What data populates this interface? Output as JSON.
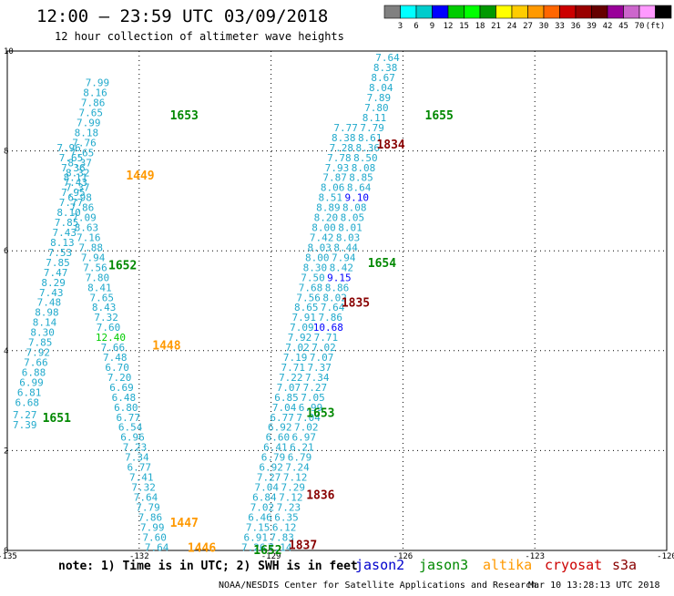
{
  "title": "12:00 – 23:59 UTC 03/09/2018",
  "subtitle": "12 hour collection of altimeter wave heights",
  "colorbar": {
    "colors": [
      "#808080",
      "#00ffff",
      "#00cccc",
      "#0000ff",
      "#00cc00",
      "#00ff00",
      "#009900",
      "#ffff00",
      "#ffcc00",
      "#ff9900",
      "#ff6600",
      "#cc0000",
      "#990000",
      "#660000",
      "#990099",
      "#cc66cc",
      "#ff99ff",
      "#000000"
    ],
    "labels": [
      "3",
      "6",
      "9",
      "12",
      "15",
      "18",
      "21",
      "24",
      "27",
      "30",
      "33",
      "36",
      "39",
      "42",
      "45",
      "70",
      "(ft)"
    ]
  },
  "axes": {
    "x_ticks": [
      "-135",
      "-132",
      "-129",
      "-126",
      "-123",
      "-120"
    ],
    "y_ticks": [
      "0",
      "2",
      "4",
      "6",
      "8",
      "10"
    ],
    "x_range": [
      -135,
      -120
    ],
    "y_range": [
      0,
      10
    ]
  },
  "legend": {
    "note": "note:  1) Time is in UTC;  2) SWH is in feet",
    "satellites": [
      {
        "name": "jason2",
        "color": "#0000cc"
      },
      {
        "name": "jason3",
        "color": "#008800"
      },
      {
        "name": "altika",
        "color": "#ff9900"
      },
      {
        "name": "cryosat",
        "color": "#cc0000"
      },
      {
        "name": "s3a",
        "color": "#880000"
      }
    ]
  },
  "footer": {
    "credit": "NOAA/NESDIS Center for Satellite Applications and Research",
    "timestamp": "Mar 10 13:28:13 UTC 2018"
  },
  "passes": [
    {
      "time": "1651",
      "lon": -134.2,
      "lat": 2.65,
      "color": "#008800"
    },
    {
      "time": "1652",
      "lon": -132.7,
      "lat": 5.7,
      "color": "#008800"
    },
    {
      "time": "1653",
      "lon": -131.3,
      "lat": 8.7,
      "color": "#008800"
    },
    {
      "time": "1446",
      "lon": -130.9,
      "lat": 0.05,
      "color": "#ff9900"
    },
    {
      "time": "1447",
      "lon": -131.3,
      "lat": 0.55,
      "color": "#ff9900"
    },
    {
      "time": "1448",
      "lon": -131.7,
      "lat": 4.1,
      "color": "#ff9900"
    },
    {
      "time": "1449",
      "lon": -132.3,
      "lat": 7.5,
      "color": "#ff9900"
    },
    {
      "time": "1652",
      "lon": -129.4,
      "lat": 0.0,
      "color": "#008800"
    },
    {
      "time": "1653",
      "lon": -128.2,
      "lat": 2.75,
      "color": "#008800"
    },
    {
      "time": "1654",
      "lon": -126.8,
      "lat": 5.75,
      "color": "#008800"
    },
    {
      "time": "1655",
      "lon": -125.5,
      "lat": 8.7,
      "color": "#008800"
    },
    {
      "time": "1837",
      "lon": -128.6,
      "lat": 0.1,
      "color": "#880000"
    },
    {
      "time": "1836",
      "lon": -128.2,
      "lat": 1.1,
      "color": "#880000"
    },
    {
      "time": "1835",
      "lon": -127.4,
      "lat": 4.95,
      "color": "#880000"
    },
    {
      "time": "1834",
      "lon": -126.6,
      "lat": 8.12,
      "color": "#880000"
    }
  ],
  "tracks": [
    {
      "name": "jason3-1651-1653",
      "color": "#22aacc",
      "points": [
        [
          -134.6,
          2.5,
          "7.39"
        ],
        [
          -134.6,
          2.7,
          "7.27"
        ],
        [
          -134.55,
          2.95,
          "6.68"
        ],
        [
          -134.5,
          3.15,
          "6.81"
        ],
        [
          -134.45,
          3.35,
          "6.99"
        ],
        [
          -134.4,
          3.55,
          "6.88"
        ],
        [
          -134.35,
          3.75,
          "7.66"
        ],
        [
          -134.3,
          3.95,
          "7.92"
        ],
        [
          -134.25,
          4.15,
          "7.85"
        ],
        [
          -134.2,
          4.35,
          "8.30"
        ],
        [
          -134.15,
          4.55,
          "8.14"
        ],
        [
          -134.1,
          4.75,
          "8.98"
        ],
        [
          -134.05,
          4.95,
          "7.48"
        ],
        [
          -134.0,
          5.15,
          "7.43"
        ],
        [
          -133.95,
          5.35,
          "8.29"
        ],
        [
          -133.9,
          5.55,
          "7.47"
        ],
        [
          -133.85,
          5.75,
          "7.85"
        ],
        [
          -133.8,
          5.95,
          "7.53"
        ],
        [
          -133.75,
          6.15,
          "8.13"
        ],
        [
          -133.7,
          6.35,
          "7.43"
        ],
        [
          -133.65,
          6.55,
          "7.85"
        ],
        [
          -133.6,
          6.75,
          "8.10"
        ],
        [
          -133.55,
          6.95,
          "7.77"
        ],
        [
          -133.5,
          7.15,
          "7.95"
        ],
        [
          -133.45,
          7.35,
          "7.43"
        ],
        [
          -133.4,
          7.55,
          "8.32"
        ],
        [
          -133.35,
          7.75,
          "8.37"
        ],
        [
          -133.3,
          7.95,
          "7.65"
        ],
        [
          -133.25,
          8.15,
          "7.76"
        ],
        [
          -133.2,
          8.35,
          "8.18"
        ],
        [
          -133.15,
          8.55,
          "7.99"
        ],
        [
          -133.1,
          8.75,
          "7.65"
        ],
        [
          -133.05,
          8.95,
          "7.86"
        ],
        [
          -133.0,
          9.15,
          "8.16"
        ],
        [
          -132.95,
          9.35,
          "7.99"
        ]
      ]
    },
    {
      "name": "altika-1446-1449",
      "color": "#22aacc",
      "points": [
        [
          -131.6,
          0.05,
          "7.64"
        ],
        [
          -131.65,
          0.25,
          "7.60"
        ],
        [
          -131.7,
          0.45,
          "7.99"
        ],
        [
          -131.75,
          0.65,
          "7.86"
        ],
        [
          -131.8,
          0.85,
          "7.79"
        ],
        [
          -131.85,
          1.05,
          "7.64"
        ],
        [
          -131.9,
          1.25,
          "7.32"
        ],
        [
          -131.95,
          1.45,
          "7.41"
        ],
        [
          -132.0,
          1.65,
          "6.77"
        ],
        [
          -132.05,
          1.85,
          "7.34"
        ],
        [
          -132.1,
          2.05,
          "7.23"
        ],
        [
          -132.15,
          2.25,
          "6.96"
        ],
        [
          -132.2,
          2.45,
          "6.54"
        ],
        [
          -132.25,
          2.65,
          "6.77"
        ],
        [
          -132.3,
          2.85,
          "6.80"
        ],
        [
          -132.35,
          3.05,
          "6.48"
        ],
        [
          -132.4,
          3.25,
          "6.69"
        ],
        [
          -132.45,
          3.45,
          "7.20"
        ],
        [
          -132.5,
          3.65,
          "6.70"
        ],
        [
          -132.55,
          3.85,
          "7.48"
        ],
        [
          -132.6,
          4.05,
          "7.66"
        ],
        [
          -132.65,
          4.25,
          "12.40"
        ],
        [
          -132.7,
          4.45,
          "7.60"
        ],
        [
          -132.75,
          4.65,
          "7.32"
        ],
        [
          -132.8,
          4.85,
          "8.43"
        ],
        [
          -132.85,
          5.05,
          "7.65"
        ],
        [
          -132.9,
          5.25,
          "8.41"
        ],
        [
          -132.95,
          5.45,
          "7.80"
        ],
        [
          -133.0,
          5.65,
          "7.56"
        ],
        [
          -133.05,
          5.85,
          "7.94"
        ],
        [
          -133.1,
          6.05,
          "7.88"
        ],
        [
          -133.15,
          6.25,
          "7.16"
        ],
        [
          -133.2,
          6.45,
          "8.63"
        ],
        [
          -133.25,
          6.65,
          "7.09"
        ],
        [
          -133.3,
          6.85,
          "7.86"
        ],
        [
          -133.35,
          7.05,
          "6.98"
        ],
        [
          -133.4,
          7.25,
          "7.37"
        ],
        [
          -133.45,
          7.45,
          "8.11"
        ],
        [
          -133.5,
          7.65,
          "7.36"
        ],
        [
          -133.55,
          7.85,
          "7.65"
        ],
        [
          -133.6,
          8.05,
          "7.96"
        ]
      ]
    },
    {
      "name": "jason3-1652-1655",
      "color": "#22aacc",
      "points": [
        [
          -129.4,
          0.05,
          "7.26"
        ],
        [
          -129.35,
          0.25,
          "6.91"
        ],
        [
          -129.3,
          0.45,
          "7.15"
        ],
        [
          -129.25,
          0.65,
          "6.46"
        ],
        [
          -129.2,
          0.85,
          "7.02"
        ],
        [
          -129.15,
          1.05,
          "6.84"
        ],
        [
          -129.1,
          1.25,
          "7.04"
        ],
        [
          -129.05,
          1.45,
          "7.27"
        ],
        [
          -129.0,
          1.65,
          "6.92"
        ],
        [
          -128.95,
          1.85,
          "6.79"
        ],
        [
          -128.9,
          2.05,
          "6.41"
        ],
        [
          -128.85,
          2.25,
          "6.60"
        ],
        [
          -128.8,
          2.45,
          "6.92"
        ],
        [
          -128.75,
          2.65,
          "6.77"
        ],
        [
          -128.7,
          2.85,
          "7.04"
        ],
        [
          -128.65,
          3.05,
          "6.85"
        ],
        [
          -128.6,
          3.25,
          "7.07"
        ],
        [
          -128.55,
          3.45,
          "7.22"
        ],
        [
          -128.5,
          3.65,
          "7.71"
        ],
        [
          -128.45,
          3.85,
          "7.19"
        ],
        [
          -128.4,
          4.05,
          "7.02"
        ],
        [
          -128.35,
          4.25,
          "7.92"
        ],
        [
          -128.3,
          4.45,
          "7.09"
        ],
        [
          -128.25,
          4.65,
          "7.91"
        ],
        [
          -128.2,
          4.85,
          "8.65"
        ],
        [
          -128.15,
          5.05,
          "7.56"
        ],
        [
          -128.1,
          5.25,
          "7.68"
        ],
        [
          -128.05,
          5.45,
          "7.50"
        ],
        [
          -128.0,
          5.65,
          "8.30"
        ],
        [
          -127.95,
          5.85,
          "8.00"
        ],
        [
          -127.9,
          6.05,
          "8.03"
        ],
        [
          -127.85,
          6.25,
          "7.42"
        ],
        [
          -127.8,
          6.45,
          "8.00"
        ],
        [
          -127.75,
          6.65,
          "8.20"
        ],
        [
          -127.7,
          6.85,
          "8.89"
        ],
        [
          -127.65,
          7.05,
          "8.51"
        ],
        [
          -127.6,
          7.25,
          "8.06"
        ],
        [
          -127.55,
          7.45,
          "7.87"
        ],
        [
          -127.5,
          7.65,
          "7.93"
        ],
        [
          -127.45,
          7.85,
          "7.78"
        ],
        [
          -127.4,
          8.05,
          "7.28"
        ],
        [
          -127.35,
          8.25,
          "8.38"
        ],
        [
          -127.3,
          8.45,
          "7.77"
        ]
      ]
    },
    {
      "name": "s3a-1834-1837",
      "color": "#22aacc",
      "points": [
        [
          -128.8,
          0.05,
          "7.14"
        ],
        [
          -128.75,
          0.25,
          "7.83"
        ],
        [
          -128.7,
          0.45,
          "6.12"
        ],
        [
          -128.65,
          0.65,
          "6.35"
        ],
        [
          -128.6,
          0.85,
          "7.23"
        ],
        [
          -128.55,
          1.05,
          "7.12"
        ],
        [
          -128.5,
          1.25,
          "7.29"
        ],
        [
          -128.45,
          1.45,
          "7.12"
        ],
        [
          -128.4,
          1.65,
          "7.24"
        ],
        [
          -128.35,
          1.85,
          "6.79"
        ],
        [
          -128.3,
          2.05,
          "6.21"
        ],
        [
          -128.25,
          2.25,
          "6.97"
        ],
        [
          -128.2,
          2.45,
          "7.02"
        ],
        [
          -128.15,
          2.65,
          "7.04"
        ],
        [
          -128.1,
          2.85,
          "6.99"
        ],
        [
          -128.05,
          3.05,
          "7.05"
        ],
        [
          -128.0,
          3.25,
          "7.27"
        ],
        [
          -127.95,
          3.45,
          "7.34"
        ],
        [
          -127.9,
          3.65,
          "7.37"
        ],
        [
          -127.85,
          3.85,
          "7.07"
        ],
        [
          -127.8,
          4.05,
          "7.02"
        ],
        [
          -127.75,
          4.25,
          "7.71"
        ],
        [
          -127.7,
          4.45,
          "10.68"
        ],
        [
          -127.65,
          4.65,
          "7.86"
        ],
        [
          -127.6,
          4.85,
          "7.64"
        ],
        [
          -127.55,
          5.05,
          "8.02"
        ],
        [
          -127.5,
          5.25,
          "8.86"
        ],
        [
          -127.45,
          5.45,
          "9.15"
        ],
        [
          -127.4,
          5.65,
          "8.42"
        ],
        [
          -127.35,
          5.85,
          "7.94"
        ],
        [
          -127.3,
          6.05,
          "8.44"
        ],
        [
          -127.25,
          6.25,
          "8.03"
        ],
        [
          -127.2,
          6.45,
          "8.01"
        ],
        [
          -127.15,
          6.65,
          "8.05"
        ],
        [
          -127.1,
          6.85,
          "8.08"
        ],
        [
          -127.05,
          7.05,
          "9.10"
        ],
        [
          -127.0,
          7.25,
          "8.64"
        ],
        [
          -126.95,
          7.45,
          "8.85"
        ],
        [
          -126.9,
          7.65,
          "8.08"
        ],
        [
          -126.85,
          7.85,
          "8.50"
        ],
        [
          -126.8,
          8.05,
          "8.36"
        ],
        [
          -126.75,
          8.25,
          "8.61"
        ],
        [
          -126.7,
          8.45,
          "7.79"
        ],
        [
          -126.65,
          8.65,
          "8.11"
        ],
        [
          -126.6,
          8.85,
          "7.80"
        ],
        [
          -126.55,
          9.05,
          "7.89"
        ],
        [
          -126.5,
          9.25,
          "8.04"
        ],
        [
          -126.45,
          9.45,
          "8.67"
        ],
        [
          -126.4,
          9.65,
          "8.38"
        ],
        [
          -126.35,
          9.85,
          "7.64"
        ]
      ]
    }
  ]
}
